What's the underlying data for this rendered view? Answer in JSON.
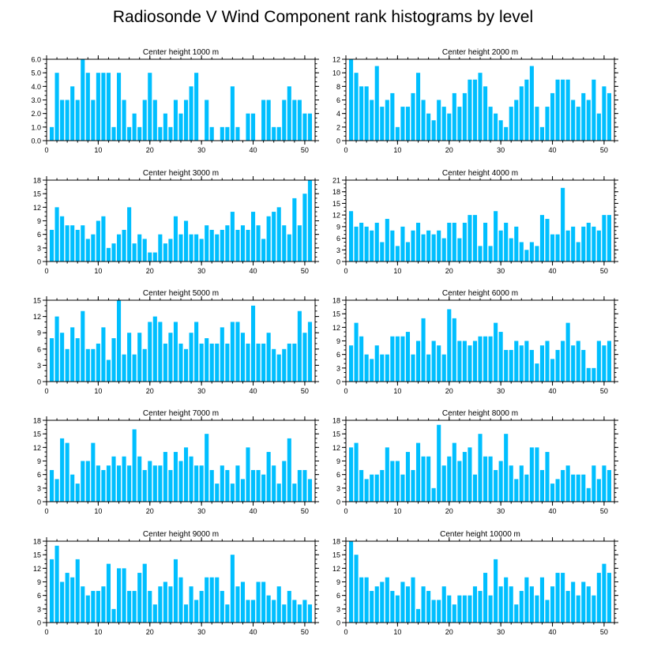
{
  "title": "Radiosonde V Wind Component rank histograms by level",
  "colors": {
    "bar": "#00bfff",
    "axis": "#000000",
    "background": "#ffffff"
  },
  "chart_data": [
    {
      "type": "bar",
      "title": "Center height 1000 m",
      "ylim": [
        0,
        6
      ],
      "yticks": [
        0,
        1,
        2,
        3,
        4,
        5,
        6
      ],
      "ytick_labels": [
        "0.0",
        "1.0",
        "2.0",
        "3.0",
        "4.0",
        "5.0",
        "6.0"
      ],
      "xlim": [
        0,
        52
      ],
      "xticks": [
        0,
        10,
        20,
        30,
        40,
        50
      ],
      "xtick_labels": [
        "0",
        "10",
        "20",
        "30",
        "40",
        "50"
      ],
      "x": [
        1,
        2,
        3,
        4,
        5,
        6,
        7,
        8,
        9,
        10,
        11,
        12,
        13,
        14,
        15,
        16,
        17,
        18,
        19,
        20,
        21,
        22,
        23,
        24,
        25,
        26,
        27,
        28,
        29,
        30,
        31,
        32,
        33,
        34,
        35,
        36,
        37,
        38,
        39,
        40,
        41,
        42,
        43,
        44,
        45,
        46,
        47,
        48,
        49,
        50,
        51
      ],
      "values": [
        1,
        5,
        3,
        3,
        4,
        3,
        6,
        5,
        3,
        5,
        5,
        5,
        1,
        5,
        3,
        1,
        2,
        1,
        3,
        5,
        3,
        1,
        2,
        1,
        3,
        2,
        3,
        4,
        5,
        0,
        3,
        1,
        0,
        1,
        1,
        4,
        1,
        0,
        2,
        2,
        0,
        3,
        3,
        1,
        1,
        3,
        4,
        3,
        3,
        2,
        2
      ]
    },
    {
      "type": "bar",
      "title": "Center height 2000 m",
      "ylim": [
        0,
        12
      ],
      "yticks": [
        0,
        2,
        4,
        6,
        8,
        10,
        12
      ],
      "ytick_labels": [
        "0",
        "2",
        "4",
        "6",
        "8",
        "10",
        "12"
      ],
      "xlim": [
        0,
        52
      ],
      "xticks": [
        0,
        10,
        20,
        30,
        40,
        50
      ],
      "xtick_labels": [
        "0",
        "10",
        "20",
        "30",
        "40",
        "50"
      ],
      "x": [
        1,
        2,
        3,
        4,
        5,
        6,
        7,
        8,
        9,
        10,
        11,
        12,
        13,
        14,
        15,
        16,
        17,
        18,
        19,
        20,
        21,
        22,
        23,
        24,
        25,
        26,
        27,
        28,
        29,
        30,
        31,
        32,
        33,
        34,
        35,
        36,
        37,
        38,
        39,
        40,
        41,
        42,
        43,
        44,
        45,
        46,
        47,
        48,
        49,
        50,
        51
      ],
      "values": [
        12,
        10,
        8,
        8,
        6,
        11,
        5,
        6,
        7,
        2,
        5,
        5,
        7,
        10,
        6,
        4,
        3,
        6,
        5,
        4,
        7,
        5,
        7,
        9,
        9,
        10,
        8,
        5,
        4,
        3,
        2,
        5,
        6,
        8,
        9,
        11,
        5,
        2,
        5,
        7,
        9,
        9,
        9,
        6,
        5,
        7,
        6,
        9,
        4,
        8,
        7
      ]
    },
    {
      "type": "bar",
      "title": "Center height 3000 m",
      "ylim": [
        0,
        18
      ],
      "yticks": [
        0,
        3,
        6,
        9,
        12,
        15,
        18
      ],
      "ytick_labels": [
        "0",
        "3",
        "6",
        "9",
        "12",
        "15",
        "18"
      ],
      "xlim": [
        0,
        52
      ],
      "xticks": [
        0,
        10,
        20,
        30,
        40,
        50
      ],
      "xtick_labels": [
        "0",
        "10",
        "20",
        "30",
        "40",
        "50"
      ],
      "x": [
        1,
        2,
        3,
        4,
        5,
        6,
        7,
        8,
        9,
        10,
        11,
        12,
        13,
        14,
        15,
        16,
        17,
        18,
        19,
        20,
        21,
        22,
        23,
        24,
        25,
        26,
        27,
        28,
        29,
        30,
        31,
        32,
        33,
        34,
        35,
        36,
        37,
        38,
        39,
        40,
        41,
        42,
        43,
        44,
        45,
        46,
        47,
        48,
        49,
        50,
        51
      ],
      "values": [
        7,
        12,
        10,
        8,
        8,
        7,
        8,
        5,
        6,
        9,
        10,
        3,
        4,
        6,
        7,
        12,
        4,
        6,
        5,
        2,
        2,
        6,
        4,
        5,
        10,
        6,
        9,
        6,
        6,
        5,
        8,
        7,
        6,
        7,
        8,
        11,
        7,
        8,
        7,
        11,
        8,
        5,
        10,
        11,
        12,
        8,
        6,
        14,
        8,
        15,
        18
      ]
    },
    {
      "type": "bar",
      "title": "Center height 4000 m",
      "ylim": [
        0,
        21
      ],
      "yticks": [
        0,
        3,
        6,
        9,
        12,
        15,
        18,
        21
      ],
      "ytick_labels": [
        "0",
        "3",
        "6",
        "9",
        "12",
        "15",
        "18",
        "21"
      ],
      "xlim": [
        0,
        52
      ],
      "xticks": [
        0,
        10,
        20,
        30,
        40,
        50
      ],
      "xtick_labels": [
        "0",
        "10",
        "20",
        "30",
        "40",
        "50"
      ],
      "x": [
        1,
        2,
        3,
        4,
        5,
        6,
        7,
        8,
        9,
        10,
        11,
        12,
        13,
        14,
        15,
        16,
        17,
        18,
        19,
        20,
        21,
        22,
        23,
        24,
        25,
        26,
        27,
        28,
        29,
        30,
        31,
        32,
        33,
        34,
        35,
        36,
        37,
        38,
        39,
        40,
        41,
        42,
        43,
        44,
        45,
        46,
        47,
        48,
        49,
        50,
        51
      ],
      "values": [
        13,
        9,
        10,
        9,
        8,
        10,
        5,
        11,
        8,
        4,
        9,
        5,
        8,
        10,
        7,
        8,
        7,
        8,
        6,
        10,
        10,
        6,
        10,
        12,
        12,
        4,
        10,
        4,
        13,
        8,
        10,
        6,
        9,
        5,
        3,
        5,
        4,
        12,
        11,
        7,
        7,
        19,
        8,
        9,
        5,
        9,
        10,
        9,
        8,
        12,
        12
      ]
    },
    {
      "type": "bar",
      "title": "Center height 5000 m",
      "ylim": [
        0,
        15
      ],
      "yticks": [
        0,
        3,
        6,
        9,
        12,
        15
      ],
      "ytick_labels": [
        "0",
        "3",
        "6",
        "9",
        "12",
        "15"
      ],
      "xlim": [
        0,
        52
      ],
      "xticks": [
        0,
        10,
        20,
        30,
        40,
        50
      ],
      "xtick_labels": [
        "0",
        "10",
        "20",
        "30",
        "40",
        "50"
      ],
      "x": [
        1,
        2,
        3,
        4,
        5,
        6,
        7,
        8,
        9,
        10,
        11,
        12,
        13,
        14,
        15,
        16,
        17,
        18,
        19,
        20,
        21,
        22,
        23,
        24,
        25,
        26,
        27,
        28,
        29,
        30,
        31,
        32,
        33,
        34,
        35,
        36,
        37,
        38,
        39,
        40,
        41,
        42,
        43,
        44,
        45,
        46,
        47,
        48,
        49,
        50,
        51
      ],
      "values": [
        8,
        12,
        9,
        6,
        10,
        8,
        13,
        6,
        6,
        7,
        10,
        4,
        8,
        15,
        5,
        9,
        5,
        9,
        6,
        11,
        12,
        11,
        7,
        9,
        11,
        7,
        6,
        9,
        11,
        7,
        8,
        7,
        7,
        10,
        7,
        11,
        11,
        9,
        7,
        14,
        7,
        7,
        9,
        6,
        5,
        6,
        7,
        7,
        13,
        9,
        11
      ]
    },
    {
      "type": "bar",
      "title": "Center height 6000 m",
      "ylim": [
        0,
        18
      ],
      "yticks": [
        0,
        3,
        6,
        9,
        12,
        15,
        18
      ],
      "ytick_labels": [
        "0",
        "3",
        "6",
        "9",
        "12",
        "15",
        "18"
      ],
      "xlim": [
        0,
        52
      ],
      "xticks": [
        0,
        10,
        20,
        30,
        40,
        50
      ],
      "xtick_labels": [
        "0",
        "10",
        "20",
        "30",
        "40",
        "50"
      ],
      "x": [
        1,
        2,
        3,
        4,
        5,
        6,
        7,
        8,
        9,
        10,
        11,
        12,
        13,
        14,
        15,
        16,
        17,
        18,
        19,
        20,
        21,
        22,
        23,
        24,
        25,
        26,
        27,
        28,
        29,
        30,
        31,
        32,
        33,
        34,
        35,
        36,
        37,
        38,
        39,
        40,
        41,
        42,
        43,
        44,
        45,
        46,
        47,
        48,
        49,
        50,
        51
      ],
      "values": [
        8,
        13,
        10,
        6,
        5,
        8,
        6,
        6,
        10,
        10,
        10,
        11,
        6,
        9,
        14,
        6,
        9,
        8,
        6,
        16,
        14,
        9,
        9,
        8,
        9,
        10,
        10,
        10,
        13,
        11,
        7,
        7,
        9,
        8,
        9,
        7,
        4,
        8,
        9,
        5,
        7,
        9,
        13,
        8,
        9,
        7,
        3,
        3,
        9,
        8,
        9
      ]
    },
    {
      "type": "bar",
      "title": "Center height 7000 m",
      "ylim": [
        0,
        18
      ],
      "yticks": [
        0,
        3,
        6,
        9,
        12,
        15,
        18
      ],
      "ytick_labels": [
        "0",
        "3",
        "6",
        "9",
        "12",
        "15",
        "18"
      ],
      "xlim": [
        0,
        52
      ],
      "xticks": [
        0,
        10,
        20,
        30,
        40,
        50
      ],
      "xtick_labels": [
        "0",
        "10",
        "20",
        "30",
        "40",
        "50"
      ],
      "x": [
        1,
        2,
        3,
        4,
        5,
        6,
        7,
        8,
        9,
        10,
        11,
        12,
        13,
        14,
        15,
        16,
        17,
        18,
        19,
        20,
        21,
        22,
        23,
        24,
        25,
        26,
        27,
        28,
        29,
        30,
        31,
        32,
        33,
        34,
        35,
        36,
        37,
        38,
        39,
        40,
        41,
        42,
        43,
        44,
        45,
        46,
        47,
        48,
        49,
        50,
        51
      ],
      "values": [
        7,
        5,
        14,
        13,
        6,
        4,
        9,
        9,
        13,
        8,
        7,
        8,
        10,
        8,
        10,
        8,
        16,
        10,
        7,
        9,
        8,
        8,
        11,
        7,
        11,
        9,
        12,
        10,
        8,
        8,
        15,
        7,
        4,
        8,
        7,
        4,
        8,
        5,
        12,
        7,
        7,
        6,
        11,
        8,
        4,
        9,
        14,
        4,
        7,
        7,
        5
      ]
    },
    {
      "type": "bar",
      "title": "Center height 8000 m",
      "ylim": [
        0,
        18
      ],
      "yticks": [
        0,
        3,
        6,
        9,
        12,
        15,
        18
      ],
      "ytick_labels": [
        "0",
        "3",
        "6",
        "9",
        "12",
        "15",
        "18"
      ],
      "xlim": [
        0,
        52
      ],
      "xticks": [
        0,
        10,
        20,
        30,
        40,
        50
      ],
      "xtick_labels": [
        "0",
        "10",
        "20",
        "30",
        "40",
        "50"
      ],
      "x": [
        1,
        2,
        3,
        4,
        5,
        6,
        7,
        8,
        9,
        10,
        11,
        12,
        13,
        14,
        15,
        16,
        17,
        18,
        19,
        20,
        21,
        22,
        23,
        24,
        25,
        26,
        27,
        28,
        29,
        30,
        31,
        32,
        33,
        34,
        35,
        36,
        37,
        38,
        39,
        40,
        41,
        42,
        43,
        44,
        45,
        46,
        47,
        48,
        49,
        50,
        51
      ],
      "values": [
        12,
        13,
        7,
        5,
        6,
        6,
        7,
        12,
        9,
        9,
        6,
        11,
        7,
        13,
        10,
        10,
        3,
        17,
        8,
        10,
        13,
        9,
        11,
        12,
        6,
        15,
        10,
        10,
        7,
        9,
        15,
        8,
        5,
        8,
        6,
        12,
        12,
        7,
        11,
        4,
        5,
        7,
        8,
        6,
        6,
        6,
        3,
        8,
        5,
        8,
        7
      ]
    },
    {
      "type": "bar",
      "title": "Center height 9000 m",
      "ylim": [
        0,
        18
      ],
      "yticks": [
        0,
        3,
        6,
        9,
        12,
        15,
        18
      ],
      "ytick_labels": [
        "0",
        "3",
        "6",
        "9",
        "12",
        "15",
        "18"
      ],
      "xlim": [
        0,
        52
      ],
      "xticks": [
        0,
        10,
        20,
        30,
        40,
        50
      ],
      "xtick_labels": [
        "0",
        "10",
        "20",
        "30",
        "40",
        "50"
      ],
      "x": [
        1,
        2,
        3,
        4,
        5,
        6,
        7,
        8,
        9,
        10,
        11,
        12,
        13,
        14,
        15,
        16,
        17,
        18,
        19,
        20,
        21,
        22,
        23,
        24,
        25,
        26,
        27,
        28,
        29,
        30,
        31,
        32,
        33,
        34,
        35,
        36,
        37,
        38,
        39,
        40,
        41,
        42,
        43,
        44,
        45,
        46,
        47,
        48,
        49,
        50,
        51
      ],
      "values": [
        14,
        17,
        9,
        11,
        10,
        14,
        8,
        6,
        7,
        7,
        8,
        13,
        3,
        12,
        12,
        7,
        7,
        11,
        13,
        7,
        4,
        8,
        9,
        8,
        14,
        10,
        4,
        8,
        5,
        7,
        10,
        10,
        10,
        7,
        4,
        15,
        8,
        9,
        5,
        5,
        9,
        9,
        6,
        5,
        8,
        4,
        7,
        5,
        4,
        5,
        4
      ]
    },
    {
      "type": "bar",
      "title": "Center height 10000 m",
      "ylim": [
        0,
        18
      ],
      "yticks": [
        0,
        3,
        6,
        9,
        12,
        15,
        18
      ],
      "ytick_labels": [
        "0",
        "3",
        "6",
        "9",
        "12",
        "15",
        "18"
      ],
      "xlim": [
        0,
        52
      ],
      "xticks": [
        0,
        10,
        20,
        30,
        40,
        50
      ],
      "xtick_labels": [
        "0",
        "10",
        "20",
        "30",
        "40",
        "50"
      ],
      "x": [
        1,
        2,
        3,
        4,
        5,
        6,
        7,
        8,
        9,
        10,
        11,
        12,
        13,
        14,
        15,
        16,
        17,
        18,
        19,
        20,
        21,
        22,
        23,
        24,
        25,
        26,
        27,
        28,
        29,
        30,
        31,
        32,
        33,
        34,
        35,
        36,
        37,
        38,
        39,
        40,
        41,
        42,
        43,
        44,
        45,
        46,
        47,
        48,
        49,
        50,
        51
      ],
      "values": [
        18,
        15,
        10,
        10,
        7,
        8,
        9,
        10,
        7,
        6,
        9,
        8,
        10,
        3,
        8,
        7,
        5,
        5,
        8,
        6,
        4,
        6,
        6,
        6,
        8,
        7,
        11,
        6,
        14,
        8,
        10,
        8,
        4,
        7,
        10,
        8,
        6,
        10,
        5,
        8,
        11,
        11,
        7,
        9,
        6,
        9,
        8,
        6,
        11,
        13,
        11
      ]
    }
  ]
}
